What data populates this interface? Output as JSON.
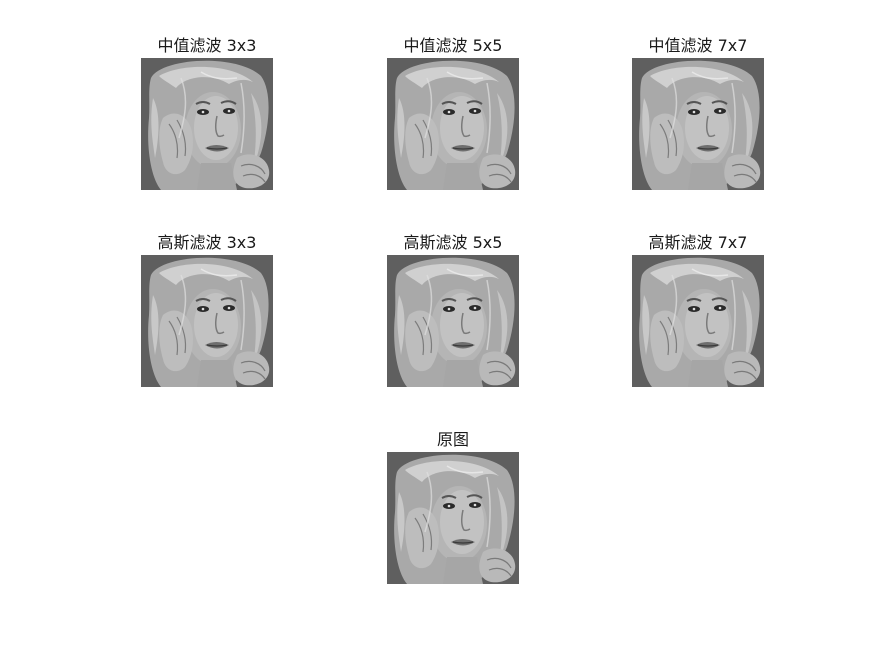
{
  "figure": {
    "background": "#ffffff",
    "subplots": [
      {
        "title": "中值滤波 3x3",
        "filter": "median",
        "kernel": "3x3"
      },
      {
        "title": "中值滤波 5x5",
        "filter": "median",
        "kernel": "5x5"
      },
      {
        "title": "中值滤波 7x7",
        "filter": "median",
        "kernel": "7x7"
      },
      {
        "title": "高斯滤波 3x3",
        "filter": "gaussian",
        "kernel": "3x3"
      },
      {
        "title": "高斯滤波 5x5",
        "filter": "gaussian",
        "kernel": "5x5"
      },
      {
        "title": "高斯滤波 7x7",
        "filter": "gaussian",
        "kernel": "7x7"
      },
      {
        "title": "原图",
        "filter": "original",
        "kernel": ""
      }
    ],
    "image_subject": "grayscale portrait of a blonde woman with hand near face"
  }
}
